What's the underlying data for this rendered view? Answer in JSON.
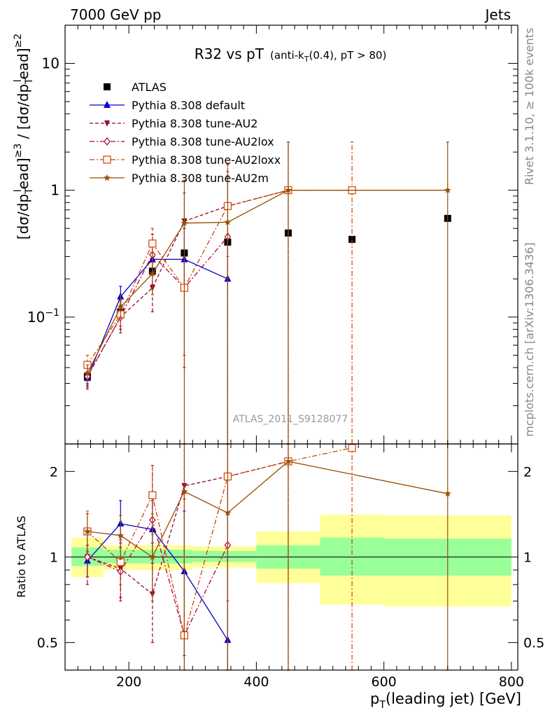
{
  "header": {
    "left": "7000 GeV pp",
    "right": "Jets",
    "side_top": "Rivet 3.1.10, ≥ 100k events",
    "side_bottom": "mcplots.cern.ch [arXiv:1306.3436]",
    "watermark": "ATLAS_2011_S9128077"
  },
  "chart_data": [
    {
      "type": "scatter",
      "panel": "main",
      "title_main": "R32 vs pT",
      "title_sub": "(anti-k",
      "title_sub_sub": "T",
      "title_sub_rest": "(0.4), pT > 80)",
      "ylabel": "[dσ/dpᵀead]≥3 / [dσ/dpᵀead]≥2",
      "ylabel_parts": {
        "a": "[dσ/dp",
        "a_sub": "T",
        "a_sup": "l",
        "a_tail": "ead]",
        "a_tail_sup": "≥3",
        "sep": " / ",
        "b": "[dσ/dp",
        "b_sub": "T",
        "b_sup": "l",
        "b_tail": "ead]",
        "b_tail_sup": "≥2"
      },
      "yscale": "log",
      "xlim": [
        100,
        810
      ],
      "ylim": [
        0.01,
        20
      ],
      "ytick_labels": [
        {
          "value": 0.1,
          "base": "10",
          "exp": "−1"
        },
        {
          "value": 1,
          "base": "1",
          "exp": ""
        },
        {
          "value": 10,
          "base": "10",
          "exp": ""
        }
      ],
      "legend_position": "top-left",
      "series": [
        {
          "name": "ATLAS",
          "color": "#000000",
          "marker": "square",
          "line": "none",
          "points": [
            {
              "x": 135,
              "y": 0.034,
              "err": 0.002
            },
            {
              "x": 187,
              "y": 0.11,
              "err": 0.005
            },
            {
              "x": 237,
              "y": 0.23,
              "err": 0.01
            },
            {
              "x": 287,
              "y": 0.32,
              "err": 0.02
            },
            {
              "x": 355,
              "y": 0.39,
              "err": 0.02
            },
            {
              "x": 450,
              "y": 0.46,
              "err": 0.03
            },
            {
              "x": 550,
              "y": 0.41,
              "err": 0.03
            },
            {
              "x": 700,
              "y": 0.6,
              "err": 0.05
            }
          ]
        },
        {
          "name": "Pythia 8.308 default",
          "color": "#0000cc",
          "marker": "triangle-up",
          "line": "solid",
          "points": [
            {
              "x": 135,
              "y": 0.033,
              "lo": 0.029,
              "hi": 0.037
            },
            {
              "x": 187,
              "y": 0.145,
              "lo": 0.12,
              "hi": 0.175
            },
            {
              "x": 237,
              "y": 0.285,
              "lo": 0.22,
              "hi": 0.36
            },
            {
              "x": 287,
              "y": 0.285,
              "lo": 0.16,
              "hi": 0.5
            },
            {
              "x": 355,
              "y": 0.2,
              "lo": 0.01,
              "hi": 0.4
            }
          ]
        },
        {
          "name": "Pythia 8.308 tune-AU2",
          "color": "#990033",
          "marker": "triangle-down",
          "line": "dashed",
          "points": [
            {
              "x": 135,
              "y": 0.034,
              "lo": 0.028,
              "hi": 0.041
            },
            {
              "x": 187,
              "y": 0.1,
              "lo": 0.08,
              "hi": 0.125
            },
            {
              "x": 237,
              "y": 0.17,
              "lo": 0.11,
              "hi": 0.27
            },
            {
              "x": 287,
              "y": 0.57,
              "lo": 0.3,
              "hi": 0.95
            },
            {
              "x": 355,
              "y": 0.75,
              "lo": 0.2,
              "hi": 1.6
            },
            {
              "x": 450,
              "y": 1.0,
              "lo": 0.01,
              "hi": 2.4
            }
          ]
        },
        {
          "name": "Pythia 8.308 tune-AU2lox",
          "color": "#b3003b",
          "marker": "diamond-open",
          "line": "dash-dot",
          "points": [
            {
              "x": 135,
              "y": 0.034,
              "lo": 0.027,
              "hi": 0.043
            },
            {
              "x": 187,
              "y": 0.1,
              "lo": 0.075,
              "hi": 0.135
            },
            {
              "x": 237,
              "y": 0.31,
              "lo": 0.18,
              "hi": 0.45
            },
            {
              "x": 287,
              "y": 0.17,
              "lo": 0.04,
              "hi": 0.55
            },
            {
              "x": 355,
              "y": 0.43,
              "lo": 0.01,
              "hi": 1.3
            }
          ]
        },
        {
          "name": "Pythia 8.308 tune-AU2loxx",
          "color": "#cc4400",
          "marker": "square-open",
          "line": "dash-dot",
          "points": [
            {
              "x": 135,
              "y": 0.042,
              "lo": 0.035,
              "hi": 0.05
            },
            {
              "x": 187,
              "y": 0.105,
              "lo": 0.085,
              "hi": 0.13
            },
            {
              "x": 237,
              "y": 0.38,
              "lo": 0.27,
              "hi": 0.5
            },
            {
              "x": 287,
              "y": 0.17,
              "lo": 0.05,
              "hi": 0.3
            },
            {
              "x": 355,
              "y": 0.75,
              "lo": 0.3,
              "hi": 1.6
            },
            {
              "x": 450,
              "y": 1.0,
              "lo": 0.01,
              "hi": 2.4
            },
            {
              "x": 550,
              "y": 1.0,
              "lo": 0.01,
              "hi": 2.4
            }
          ]
        },
        {
          "name": "Pythia 8.308 tune-AU2m",
          "color": "#994d00",
          "marker": "star",
          "line": "solid",
          "points": [
            {
              "x": 135,
              "y": 0.036,
              "lo": 0.03,
              "hi": 0.042
            },
            {
              "x": 187,
              "y": 0.12,
              "lo": 0.1,
              "hi": 0.15
            },
            {
              "x": 237,
              "y": 0.22,
              "lo": 0.15,
              "hi": 0.32
            },
            {
              "x": 287,
              "y": 0.55,
              "lo": 0.01,
              "hi": 1.2
            },
            {
              "x": 355,
              "y": 0.56,
              "lo": 0.01,
              "hi": 1.4
            },
            {
              "x": 450,
              "y": 1.0,
              "lo": 0.01,
              "hi": 2.4
            },
            {
              "x": 700,
              "y": 1.0,
              "lo": 0.01,
              "hi": 2.4
            }
          ]
        }
      ]
    },
    {
      "type": "scatter",
      "panel": "ratio",
      "ylabel": "Ratio to ATLAS",
      "xlabel_main": "p",
      "xlabel_sub": "T",
      "xlabel_rest": "(leading jet) [GeV]",
      "yscale": "log",
      "xlim": [
        100,
        810
      ],
      "ylim": [
        0.4,
        2.5
      ],
      "xticks": [
        200,
        400,
        600,
        800
      ],
      "yticks": [
        0.5,
        1,
        2
      ],
      "ytick_labels": [
        "0.5",
        "1",
        "2"
      ],
      "bands": [
        {
          "x0": 110,
          "x1": 160,
          "g_lo": 0.93,
          "g_hi": 1.08,
          "y_lo": 0.85,
          "y_hi": 1.17
        },
        {
          "x0": 160,
          "x1": 300,
          "g_lo": 0.95,
          "g_hi": 1.06,
          "y_lo": 0.9,
          "y_hi": 1.1
        },
        {
          "x0": 300,
          "x1": 400,
          "g_lo": 0.96,
          "g_hi": 1.05,
          "y_lo": 0.92,
          "y_hi": 1.09
        },
        {
          "x0": 400,
          "x1": 500,
          "g_lo": 0.91,
          "g_hi": 1.1,
          "y_lo": 0.81,
          "y_hi": 1.23
        },
        {
          "x0": 500,
          "x1": 600,
          "g_lo": 0.86,
          "g_hi": 1.17,
          "y_lo": 0.68,
          "y_hi": 1.41
        },
        {
          "x0": 600,
          "x1": 800,
          "g_lo": 0.86,
          "g_hi": 1.16,
          "y_lo": 0.67,
          "y_hi": 1.4
        }
      ],
      "series": [
        {
          "name": "Pythia 8.308 default",
          "color": "#0000cc",
          "marker": "triangle-up",
          "line": "solid",
          "points": [
            {
              "x": 135,
              "y": 0.97,
              "lo": 0.85,
              "hi": 1.1
            },
            {
              "x": 187,
              "y": 1.31,
              "lo": 1.08,
              "hi": 1.58
            },
            {
              "x": 237,
              "y": 1.25,
              "lo": 0.95,
              "hi": 1.58
            },
            {
              "x": 287,
              "y": 0.89,
              "lo": 0.45,
              "hi": 1.45
            },
            {
              "x": 355,
              "y": 0.51,
              "lo": 0.4,
              "hi": 1.0
            }
          ]
        },
        {
          "name": "Pythia 8.308 tune-AU2",
          "color": "#990033",
          "marker": "triangle-down",
          "line": "dashed",
          "points": [
            {
              "x": 135,
              "y": 1.0,
              "lo": 0.85,
              "hi": 1.2
            },
            {
              "x": 187,
              "y": 0.91,
              "lo": 0.72,
              "hi": 1.12
            },
            {
              "x": 237,
              "y": 0.74,
              "lo": 0.5,
              "hi": 1.12
            },
            {
              "x": 287,
              "y": 1.78,
              "lo": 0.9,
              "hi": 2.9
            },
            {
              "x": 355,
              "y": 1.92,
              "lo": 0.5,
              "hi": 2.5
            },
            {
              "x": 450,
              "y": 2.17,
              "lo": 0.4,
              "hi": 2.5
            }
          ]
        },
        {
          "name": "Pythia 8.308 tune-AU2lox",
          "color": "#b3003b",
          "marker": "diamond-open",
          "line": "dash-dot",
          "points": [
            {
              "x": 135,
              "y": 1.0,
              "lo": 0.8,
              "hi": 1.25
            },
            {
              "x": 187,
              "y": 0.89,
              "lo": 0.7,
              "hi": 1.15
            },
            {
              "x": 237,
              "y": 1.35,
              "lo": 0.75,
              "hi": 2.1
            },
            {
              "x": 287,
              "y": 0.53,
              "lo": 0.4,
              "hi": 1.6
            },
            {
              "x": 355,
              "y": 1.1,
              "lo": 0.4,
              "hi": 2.5
            }
          ]
        },
        {
          "name": "Pythia 8.308 tune-AU2loxx",
          "color": "#cc4400",
          "marker": "square-open",
          "line": "dash-dot",
          "points": [
            {
              "x": 135,
              "y": 1.23,
              "lo": 1.04,
              "hi": 1.45
            },
            {
              "x": 187,
              "y": 0.96,
              "lo": 0.8,
              "hi": 1.15
            },
            {
              "x": 237,
              "y": 1.65,
              "lo": 1.2,
              "hi": 2.1
            },
            {
              "x": 287,
              "y": 0.53,
              "lo": 0.4,
              "hi": 1.0
            },
            {
              "x": 355,
              "y": 1.92,
              "lo": 0.7,
              "hi": 2.5
            },
            {
              "x": 450,
              "y": 2.17,
              "lo": 0.4,
              "hi": 2.5
            },
            {
              "x": 550,
              "y": 2.42,
              "lo": 0.4,
              "hi": 2.5
            }
          ]
        },
        {
          "name": "Pythia 8.308 tune-AU2m",
          "color": "#994d00",
          "marker": "star",
          "line": "solid",
          "points": [
            {
              "x": 135,
              "y": 1.23,
              "lo": 1.05,
              "hi": 1.42
            },
            {
              "x": 187,
              "y": 1.19,
              "lo": 0.98,
              "hi": 1.4
            },
            {
              "x": 237,
              "y": 1.0,
              "lo": 0.7,
              "hi": 1.42
            },
            {
              "x": 287,
              "y": 1.7,
              "lo": 0.4,
              "hi": 2.5
            },
            {
              "x": 355,
              "y": 1.43,
              "lo": 0.4,
              "hi": 2.5
            },
            {
              "x": 450,
              "y": 2.17,
              "lo": 0.4,
              "hi": 2.5
            },
            {
              "x": 700,
              "y": 1.67,
              "lo": 0.4,
              "hi": 2.5
            }
          ]
        }
      ]
    }
  ]
}
